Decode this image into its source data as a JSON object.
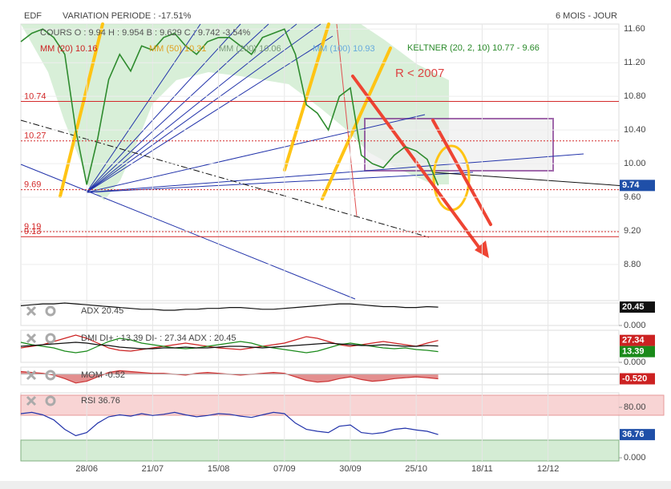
{
  "header": {
    "symbol": "EDF",
    "variation": "VARIATION PERIODE : -17.51%",
    "period": "6 MOIS - JOUR"
  },
  "chart_data": [
    {
      "type": "line",
      "legend": [
        {
          "text": "COURS  O : 9.94  H : 9.954  B : 9.629  C : 9.742  -3.54%",
          "color": "#555555"
        },
        {
          "text": "MM (20) 10.16",
          "color": "#cc2222"
        },
        {
          "text": "MM (50) 10.31",
          "color": "#e0a020"
        },
        {
          "text": "MM (200) 10.06",
          "color": "#7a9a7a"
        },
        {
          "text": "MM (100) 10.93",
          "color": "#66aadd"
        },
        {
          "text": "KELTNER (20, 2, 10) 10.77 - 9.66",
          "color": "#2a8a2a"
        }
      ],
      "annotations": [
        "R < 2007"
      ],
      "categories": [
        null,
        null,
        null,
        null,
        null,
        null,
        "28/06",
        null,
        null,
        null,
        null,
        null,
        "21/07",
        null,
        null,
        null,
        null,
        null,
        "15/08",
        null,
        null,
        null,
        null,
        null,
        "07/09",
        null,
        null,
        null,
        null,
        null,
        "30/09",
        null,
        null,
        null,
        null,
        null,
        "25/10",
        null,
        null,
        null,
        null,
        null,
        "18/11",
        null,
        null,
        null,
        null,
        null,
        "12/12",
        null,
        null,
        null,
        null,
        null,
        null
      ],
      "series": [
        {
          "name": "COURS",
          "color": "#2e8b2e",
          "values": [
            11.45,
            11.55,
            11.6,
            11.5,
            11.3,
            10.4,
            9.75,
            10.3,
            11.0,
            11.3,
            11.1,
            11.4,
            11.35,
            11.5,
            11.55,
            11.4,
            11.3,
            11.45,
            11.5,
            11.5,
            11.4,
            11.3,
            11.5,
            11.55,
            11.6,
            11.3,
            10.7,
            10.6,
            10.4,
            10.8,
            10.9,
            10.1,
            10.0,
            9.95,
            10.1,
            10.2,
            10.15,
            10.05,
            9.74,
            null,
            null,
            null,
            null,
            null,
            null,
            null,
            null,
            null,
            null,
            null,
            null,
            null,
            null,
            null,
            null
          ],
          "tag_color": "#1f4fa8"
        }
      ],
      "levels": [
        {
          "value": 10.74,
          "style": "solid"
        },
        {
          "value": 10.27,
          "style": "dotted"
        },
        {
          "value": 9.69,
          "style": "dotted"
        },
        {
          "value": 9.19,
          "style": "dotted"
        },
        {
          "value": 9.13,
          "style": "solid"
        }
      ],
      "level_color": "#d42a2a",
      "ylim": [
        8.37,
        11.66
      ],
      "yticks": [
        {
          "value": 11.6,
          "label": "11.60"
        },
        {
          "value": 11.2,
          "label": "11.20"
        },
        {
          "value": 10.8,
          "label": "10.80"
        },
        {
          "value": 10.4,
          "label": "10.40"
        },
        {
          "value": 10.0,
          "label": "10.00"
        },
        {
          "value": 9.6,
          "label": "9.60"
        },
        {
          "value": 9.2,
          "label": "9.20"
        },
        {
          "value": 8.8,
          "label": "8.80"
        }
      ],
      "grid": true
    },
    {
      "type": "line",
      "title": "ADX 20.45",
      "series": [
        {
          "name": "ADX",
          "color": "#111111",
          "tag_color": "#111111",
          "values": [
            22,
            23,
            24,
            24,
            25,
            24,
            23,
            22,
            21,
            20,
            19,
            18,
            18,
            17,
            17,
            18,
            18,
            19,
            19,
            20,
            20,
            19,
            18,
            18,
            19,
            20,
            21,
            22,
            23,
            24,
            24,
            23,
            22,
            21,
            21,
            20,
            20,
            21,
            20.45,
            null,
            null,
            null,
            null,
            null,
            null,
            null,
            null,
            null,
            null,
            null,
            null,
            null,
            null,
            null,
            null
          ]
        }
      ],
      "ylim": [
        0,
        25
      ],
      "yticks": [
        {
          "value": 0,
          "label": "0.000"
        }
      ]
    },
    {
      "type": "line",
      "title": "DMI DI+ : 13.39 DI- : 27.34 ADX : 20.45",
      "series": [
        {
          "name": "DI-",
          "color": "#cc2222",
          "tag_color": "#cc2222",
          "values": [
            18,
            20,
            22,
            26,
            30,
            34,
            30,
            24,
            18,
            15,
            14,
            16,
            18,
            20,
            22,
            24,
            22,
            20,
            18,
            17,
            16,
            18,
            20,
            22,
            24,
            28,
            32,
            30,
            26,
            22,
            20,
            22,
            24,
            26,
            24,
            22,
            20,
            24,
            27.34,
            null,
            null,
            null,
            null,
            null,
            null,
            null,
            null,
            null,
            null,
            null,
            null,
            null,
            null,
            null,
            null
          ]
        },
        {
          "name": "DI+",
          "color": "#1a8a1a",
          "tag_color": "#1a8a1a",
          "values": [
            25,
            22,
            20,
            18,
            14,
            12,
            14,
            20,
            26,
            30,
            28,
            24,
            22,
            20,
            18,
            17,
            18,
            20,
            22,
            24,
            26,
            24,
            20,
            18,
            16,
            14,
            12,
            14,
            18,
            22,
            24,
            22,
            20,
            18,
            17,
            18,
            16,
            15,
            13.39,
            null,
            null,
            null,
            null,
            null,
            null,
            null,
            null,
            null,
            null,
            null,
            null,
            null,
            null,
            null,
            null
          ]
        },
        {
          "name": "ADX",
          "color": "#111111",
          "values": [
            20,
            21,
            22,
            23,
            24,
            25,
            24,
            22,
            21,
            19,
            18,
            17,
            17,
            18,
            18,
            19,
            18,
            18,
            19,
            20,
            20,
            19,
            18,
            19,
            20,
            21,
            22,
            23,
            24,
            23,
            22,
            21,
            21,
            22,
            21,
            20,
            20,
            21,
            20.45,
            null,
            null,
            null,
            null,
            null,
            null,
            null,
            null,
            null,
            null,
            null,
            null,
            null,
            null,
            null,
            null
          ]
        }
      ],
      "ylim": [
        0,
        40
      ],
      "yticks": [
        {
          "value": 0,
          "label": "0.000"
        }
      ]
    },
    {
      "type": "area",
      "title": "MOM -0.52",
      "series": [
        {
          "name": "MOM",
          "color": "#cc3333",
          "tag_color": "#cc2222",
          "last_label": "-0.520",
          "values": [
            0.3,
            0.2,
            0.1,
            -0.1,
            -0.5,
            -1.0,
            -0.8,
            -0.3,
            0.2,
            0.4,
            0.3,
            0.2,
            0.1,
            0.1,
            0.0,
            -0.1,
            0.1,
            0.2,
            0.1,
            0.0,
            -0.1,
            0,
            0.1,
            0.2,
            0.1,
            -0.3,
            -0.7,
            -0.9,
            -0.8,
            -0.5,
            -0.3,
            -0.6,
            -0.8,
            -0.7,
            -0.5,
            -0.4,
            -0.3,
            -0.4,
            -0.52,
            null,
            null,
            null,
            null,
            null,
            null,
            null,
            null,
            null,
            null,
            null,
            null,
            null,
            null,
            null,
            null
          ]
        }
      ],
      "ylim": [
        -1.2,
        0.8
      ]
    },
    {
      "type": "line",
      "title": "RSI 36.76",
      "series": [
        {
          "name": "RSI",
          "color": "#2233aa",
          "tag_color": "#1f4fa8",
          "values": [
            70,
            72,
            68,
            60,
            45,
            35,
            40,
            55,
            65,
            68,
            66,
            70,
            67,
            69,
            72,
            68,
            65,
            67,
            70,
            69,
            66,
            64,
            68,
            72,
            70,
            55,
            45,
            42,
            40,
            50,
            52,
            40,
            38,
            40,
            45,
            47,
            44,
            42,
            36.76,
            null,
            null,
            null,
            null,
            null,
            null,
            null,
            null,
            null,
            null,
            null,
            null,
            null,
            null,
            null,
            null
          ]
        }
      ],
      "ylim": [
        -5,
        103
      ],
      "yticks": [
        {
          "value": 80,
          "label": "80.00"
        },
        {
          "value": 0,
          "label": "0.000"
        }
      ]
    }
  ]
}
